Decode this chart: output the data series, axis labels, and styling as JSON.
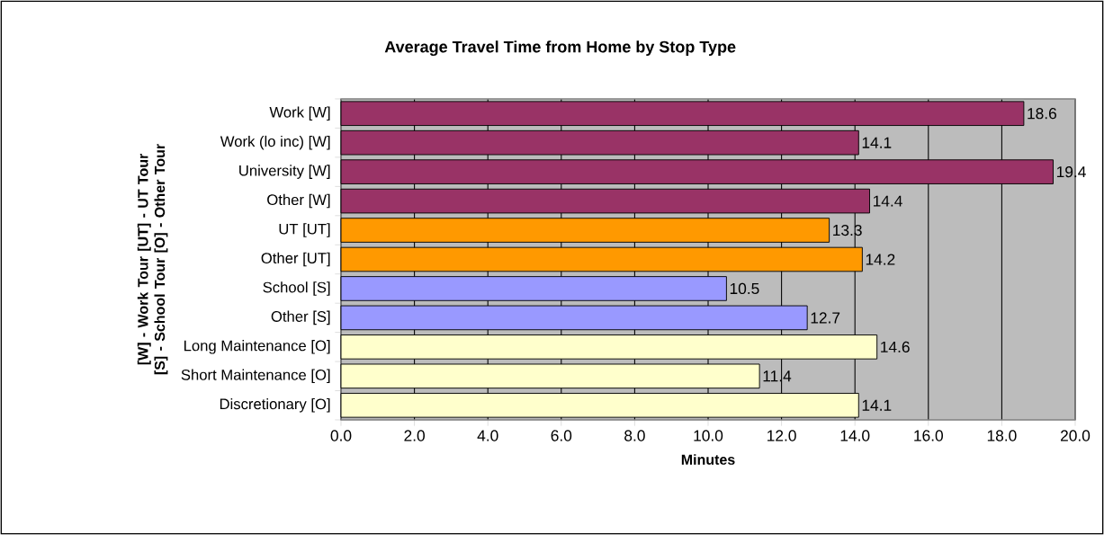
{
  "chart_data": {
    "type": "bar",
    "orientation": "horizontal",
    "title": "Average Travel Time from Home by Stop Type",
    "xlabel": "Minutes",
    "ylabel": "[W] - Work Tour [UT] - UT Tour [S] - School Tour [O] - Other Tour",
    "categories": [
      "Work [W]",
      "Work (lo inc) [W]",
      "University [W]",
      "Other [W]",
      "UT [UT]",
      "Other [UT]",
      "School [S]",
      "Other [S]",
      "Long Maintenance [O]",
      "Short Maintenance [O]",
      "Discretionary [O]"
    ],
    "values": [
      18.6,
      14.1,
      19.4,
      14.4,
      13.3,
      14.2,
      10.5,
      12.7,
      14.6,
      11.4,
      14.1
    ],
    "colors": [
      "#993366",
      "#993366",
      "#993366",
      "#993366",
      "#ff9900",
      "#ff9900",
      "#9999ff",
      "#9999ff",
      "#ffffcc",
      "#ffffcc",
      "#ffffcc"
    ],
    "xlim": [
      0,
      20
    ],
    "xticks": [
      {
        "value": 0,
        "label": "0.0"
      },
      {
        "value": 2,
        "label": "2.0"
      },
      {
        "value": 4,
        "label": "4.0"
      },
      {
        "value": 6,
        "label": "6.0"
      },
      {
        "value": 8,
        "label": "8.0"
      },
      {
        "value": 10,
        "label": "10.0"
      },
      {
        "value": 12,
        "label": "12.0"
      },
      {
        "value": 14,
        "label": "14.0"
      },
      {
        "value": 16,
        "label": "16.0"
      },
      {
        "value": 18,
        "label": "18.0"
      },
      {
        "value": 20,
        "label": "20.0"
      }
    ],
    "grid": "x",
    "data_labels": true
  }
}
